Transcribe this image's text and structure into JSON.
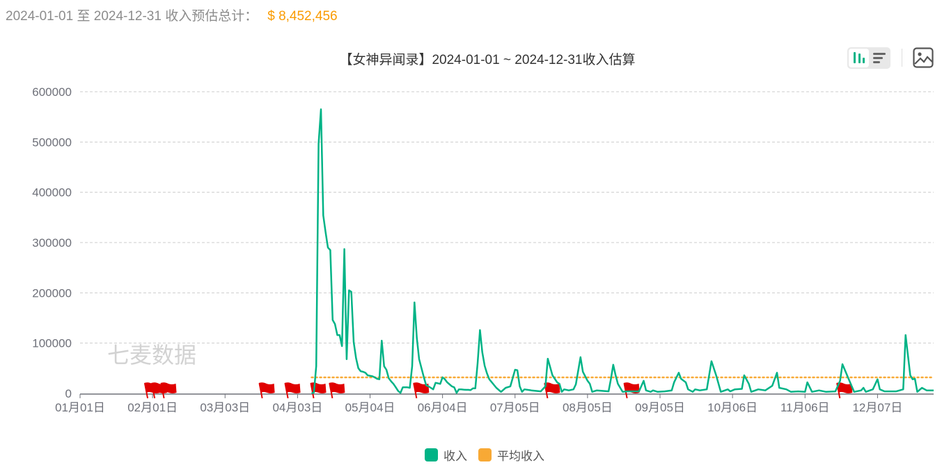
{
  "summary": {
    "range_label": "2024-01-01 至 2024-12-31 收入预估总计：",
    "total": "$ 8,452,456"
  },
  "toolbar": {
    "icons": [
      "bar-chart-icon",
      "list-icon",
      "image-icon"
    ]
  },
  "colors": {
    "revenue": "#00b386",
    "average": "#f8a935",
    "flag": "#e00000",
    "grid": "#cccccc",
    "axis": "#6e7079"
  },
  "chart_data": {
    "type": "line",
    "title": "【女神异闻录】2024-01-01 ~ 2024-12-31收入估算",
    "xlabel": "",
    "ylabel": "",
    "xlim": [
      "2024-01-01",
      "2024-12-31"
    ],
    "ylim": [
      0,
      600000
    ],
    "y_ticks": [
      0,
      100000,
      200000,
      300000,
      400000,
      500000,
      600000
    ],
    "x_ticks": [
      {
        "date": "2024-01-01",
        "label": "01月01日"
      },
      {
        "date": "2024-02-01",
        "label": "02月01日"
      },
      {
        "date": "2024-03-03",
        "label": "03月03日"
      },
      {
        "date": "2024-04-03",
        "label": "04月03日"
      },
      {
        "date": "2024-05-04",
        "label": "05月04日"
      },
      {
        "date": "2024-06-04",
        "label": "06月04日"
      },
      {
        "date": "2024-07-05",
        "label": "07月05日"
      },
      {
        "date": "2024-08-05",
        "label": "08月05日"
      },
      {
        "date": "2024-09-05",
        "label": "09月05日"
      },
      {
        "date": "2024-10-06",
        "label": "10月06日"
      },
      {
        "date": "2024-11-06",
        "label": "11月06日"
      },
      {
        "date": "2024-12-07",
        "label": "12月07日"
      }
    ],
    "grid": true,
    "legend_position": "bottom",
    "watermark": "七麦数据",
    "series": [
      {
        "name": "收入",
        "color": "#00b386",
        "points": [
          [
            "2024-04-09",
            0
          ],
          [
            "2024-04-10",
            2000
          ],
          [
            "2024-04-11",
            54000
          ],
          [
            "2024-04-12",
            497000
          ],
          [
            "2024-04-13",
            565000
          ],
          [
            "2024-04-14",
            354000
          ],
          [
            "2024-04-15",
            320000
          ],
          [
            "2024-04-16",
            290000
          ],
          [
            "2024-04-17",
            285000
          ],
          [
            "2024-04-18",
            146000
          ],
          [
            "2024-04-19",
            138000
          ],
          [
            "2024-04-20",
            116000
          ],
          [
            "2024-04-21",
            116000
          ],
          [
            "2024-04-22",
            94000
          ],
          [
            "2024-04-23",
            287000
          ],
          [
            "2024-04-24",
            68000
          ],
          [
            "2024-04-25",
            205000
          ],
          [
            "2024-04-26",
            202000
          ],
          [
            "2024-04-27",
            102000
          ],
          [
            "2024-04-28",
            70000
          ],
          [
            "2024-04-29",
            50000
          ],
          [
            "2024-04-30",
            44000
          ],
          [
            "2024-05-01",
            43000
          ],
          [
            "2024-05-02",
            41000
          ],
          [
            "2024-05-03",
            36000
          ],
          [
            "2024-05-04",
            35000
          ],
          [
            "2024-05-05",
            34000
          ],
          [
            "2024-05-06",
            32000
          ],
          [
            "2024-05-07",
            29000
          ],
          [
            "2024-05-08",
            28000
          ],
          [
            "2024-05-09",
            105000
          ],
          [
            "2024-05-10",
            54000
          ],
          [
            "2024-05-11",
            47000
          ],
          [
            "2024-05-12",
            30000
          ],
          [
            "2024-05-13",
            24000
          ],
          [
            "2024-05-14",
            19000
          ],
          [
            "2024-05-15",
            12000
          ],
          [
            "2024-05-16",
            5000
          ],
          [
            "2024-05-17",
            1000
          ],
          [
            "2024-05-18",
            12000
          ],
          [
            "2024-05-19",
            12000
          ],
          [
            "2024-05-20",
            12000
          ],
          [
            "2024-05-21",
            11000
          ],
          [
            "2024-05-22",
            54000
          ],
          [
            "2024-05-23",
            181000
          ],
          [
            "2024-05-24",
            110000
          ],
          [
            "2024-05-25",
            68000
          ],
          [
            "2024-05-26",
            50000
          ],
          [
            "2024-05-27",
            32000
          ],
          [
            "2024-05-28",
            16000
          ],
          [
            "2024-05-29",
            14000
          ],
          [
            "2024-05-30",
            11000
          ],
          [
            "2024-05-31",
            8000
          ],
          [
            "2024-06-01",
            21000
          ],
          [
            "2024-06-02",
            20000
          ],
          [
            "2024-06-03",
            19000
          ],
          [
            "2024-06-04",
            32000
          ],
          [
            "2024-06-05",
            28000
          ],
          [
            "2024-06-06",
            22000
          ],
          [
            "2024-06-07",
            18000
          ],
          [
            "2024-06-08",
            14000
          ],
          [
            "2024-06-09",
            12000
          ],
          [
            "2024-06-10",
            1000
          ],
          [
            "2024-06-11",
            8000
          ],
          [
            "2024-06-12",
            8000
          ],
          [
            "2024-06-13",
            7500
          ],
          [
            "2024-06-14",
            7000
          ],
          [
            "2024-06-15",
            7000
          ],
          [
            "2024-06-16",
            6500
          ],
          [
            "2024-06-17",
            10000
          ],
          [
            "2024-06-18",
            10000
          ],
          [
            "2024-06-19",
            60000
          ],
          [
            "2024-06-20",
            126000
          ],
          [
            "2024-06-21",
            82000
          ],
          [
            "2024-06-22",
            55000
          ],
          [
            "2024-06-23",
            40000
          ],
          [
            "2024-06-24",
            28000
          ],
          [
            "2024-06-27",
            11000
          ],
          [
            "2024-06-29",
            3000
          ],
          [
            "2024-07-01",
            11000
          ],
          [
            "2024-07-03",
            14000
          ],
          [
            "2024-07-05",
            47000
          ],
          [
            "2024-07-06",
            46000
          ],
          [
            "2024-07-07",
            14000
          ],
          [
            "2024-07-08",
            3000
          ],
          [
            "2024-07-09",
            8000
          ],
          [
            "2024-07-12",
            6000
          ],
          [
            "2024-07-16",
            4000
          ],
          [
            "2024-07-18",
            14000
          ],
          [
            "2024-07-19",
            69000
          ],
          [
            "2024-07-21",
            36000
          ],
          [
            "2024-07-23",
            22000
          ],
          [
            "2024-07-24",
            19000
          ],
          [
            "2024-07-25",
            3000
          ],
          [
            "2024-07-26",
            8000
          ],
          [
            "2024-07-28",
            6000
          ],
          [
            "2024-07-30",
            8000
          ],
          [
            "2024-07-31",
            18000
          ],
          [
            "2024-08-02",
            72000
          ],
          [
            "2024-08-03",
            43000
          ],
          [
            "2024-08-05",
            25000
          ],
          [
            "2024-08-06",
            19000
          ],
          [
            "2024-08-07",
            3000
          ],
          [
            "2024-08-09",
            6000
          ],
          [
            "2024-08-14",
            4000
          ],
          [
            "2024-08-15",
            29000
          ],
          [
            "2024-08-16",
            57000
          ],
          [
            "2024-08-17",
            36000
          ],
          [
            "2024-08-18",
            19000
          ],
          [
            "2024-08-20",
            3000
          ],
          [
            "2024-08-22",
            4000
          ],
          [
            "2024-08-27",
            4000
          ],
          [
            "2024-08-29",
            25000
          ],
          [
            "2024-08-30",
            6000
          ],
          [
            "2024-09-01",
            3000
          ],
          [
            "2024-09-02",
            6000
          ],
          [
            "2024-09-04",
            3000
          ],
          [
            "2024-09-07",
            4000
          ],
          [
            "2024-09-10",
            6000
          ],
          [
            "2024-09-11",
            22000
          ],
          [
            "2024-09-13",
            41000
          ],
          [
            "2024-09-14",
            29000
          ],
          [
            "2024-09-16",
            22000
          ],
          [
            "2024-09-17",
            8000
          ],
          [
            "2024-09-19",
            3000
          ],
          [
            "2024-09-20",
            8000
          ],
          [
            "2024-09-22",
            6000
          ],
          [
            "2024-09-25",
            8000
          ],
          [
            "2024-09-27",
            64000
          ],
          [
            "2024-09-29",
            36000
          ],
          [
            "2024-10-01",
            3000
          ],
          [
            "2024-10-04",
            8000
          ],
          [
            "2024-10-05",
            4000
          ],
          [
            "2024-10-07",
            8000
          ],
          [
            "2024-10-10",
            9000
          ],
          [
            "2024-10-11",
            36000
          ],
          [
            "2024-10-13",
            19000
          ],
          [
            "2024-10-14",
            3000
          ],
          [
            "2024-10-17",
            8000
          ],
          [
            "2024-10-20",
            6000
          ],
          [
            "2024-10-23",
            15000
          ],
          [
            "2024-10-25",
            41000
          ],
          [
            "2024-10-26",
            11000
          ],
          [
            "2024-10-29",
            8000
          ],
          [
            "2024-10-31",
            3000
          ],
          [
            "2024-11-03",
            4000
          ],
          [
            "2024-11-06",
            3000
          ],
          [
            "2024-11-07",
            22000
          ],
          [
            "2024-11-09",
            3000
          ],
          [
            "2024-11-12",
            6000
          ],
          [
            "2024-11-15",
            3000
          ],
          [
            "2024-11-19",
            4000
          ],
          [
            "2024-11-21",
            25000
          ],
          [
            "2024-11-22",
            58000
          ],
          [
            "2024-11-24",
            36000
          ],
          [
            "2024-11-26",
            14000
          ],
          [
            "2024-11-27",
            3000
          ],
          [
            "2024-11-30",
            6000
          ],
          [
            "2024-12-01",
            11000
          ],
          [
            "2024-12-02",
            3000
          ],
          [
            "2024-12-05",
            8000
          ],
          [
            "2024-12-07",
            28000
          ],
          [
            "2024-12-08",
            8000
          ],
          [
            "2024-12-10",
            4000
          ],
          [
            "2024-12-15",
            4000
          ],
          [
            "2024-12-18",
            8000
          ],
          [
            "2024-12-19",
            116000
          ],
          [
            "2024-12-21",
            36000
          ],
          [
            "2024-12-22",
            28000
          ],
          [
            "2024-12-23",
            29000
          ],
          [
            "2024-12-24",
            3000
          ],
          [
            "2024-12-26",
            11000
          ],
          [
            "2024-12-28",
            6000
          ],
          [
            "2024-12-31",
            6000
          ]
        ]
      },
      {
        "name": "平均收入",
        "color": "#f8a935",
        "style": "dotted",
        "value": 31800,
        "range": [
          "2024-04-09",
          "2024-12-31"
        ]
      }
    ],
    "event_flags": [
      "2024-01-29",
      "2024-02-01",
      "2024-02-05",
      "2024-03-18",
      "2024-03-29",
      "2024-04-09",
      "2024-04-17",
      "2024-05-23",
      "2024-07-18",
      "2024-08-21",
      "2024-11-20"
    ]
  },
  "legend": [
    {
      "label": "收入",
      "color": "#00b386"
    },
    {
      "label": "平均收入",
      "color": "#f8a935"
    }
  ]
}
